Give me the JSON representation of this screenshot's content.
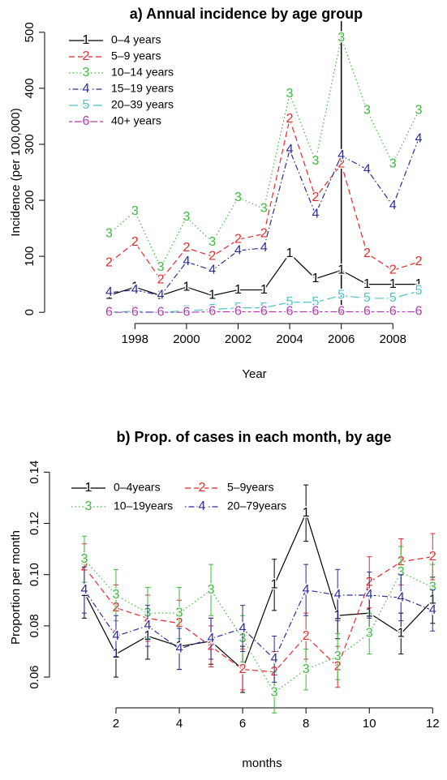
{
  "chart_data": [
    {
      "type": "line",
      "title": "a) Annual incidence by age group",
      "xlabel": "Year",
      "ylabel": "Incidence (per 100,000)",
      "x": [
        1997,
        1998,
        1999,
        2000,
        2001,
        2002,
        2003,
        2004,
        2005,
        2006,
        2007,
        2008,
        2009
      ],
      "xlim": [
        1994.5,
        2009.5
      ],
      "xticks": [
        1998,
        2000,
        2002,
        2004,
        2006,
        2008
      ],
      "ylim": [
        -20,
        520
      ],
      "yticks": [
        0,
        100,
        200,
        300,
        400,
        500
      ],
      "vline": 2006,
      "legend": "top-left",
      "series": [
        {
          "name": "0–4 years",
          "marker": "1",
          "color": "#000000",
          "line_style": "solid",
          "values": [
            30,
            45,
            30,
            45,
            30,
            40,
            40,
            105,
            60,
            75,
            50,
            50,
            50
          ]
        },
        {
          "name": "5–9 years",
          "marker": "2",
          "color": "#e8282c",
          "line_style": "dashed",
          "values": [
            88,
            125,
            58,
            115,
            100,
            130,
            140,
            345,
            205,
            265,
            105,
            75,
            90
          ]
        },
        {
          "name": "10–14 years",
          "marker": "3",
          "color": "#3db83d",
          "line_style": "dotted",
          "values": [
            140,
            180,
            80,
            170,
            125,
            205,
            185,
            390,
            270,
            490,
            360,
            265,
            360
          ]
        },
        {
          "name": "15–19 years",
          "marker": "4",
          "color": "#2b2b9a",
          "line_style": "dotdash",
          "values": [
            35,
            40,
            30,
            90,
            75,
            110,
            115,
            290,
            175,
            280,
            255,
            190,
            310
          ]
        },
        {
          "name": "20–39 years",
          "marker": "5",
          "color": "#4fc4c8",
          "line_style": "longdash",
          "values": [
            0,
            2,
            0,
            3,
            5,
            8,
            8,
            18,
            18,
            30,
            25,
            25,
            38
          ]
        },
        {
          "name": "40+ years",
          "marker": "6",
          "color": "#b03cb0",
          "line_style": "twodash",
          "values": [
            0,
            0,
            0,
            0,
            1,
            1,
            1,
            1,
            1,
            1,
            1,
            1,
            1
          ]
        }
      ]
    },
    {
      "type": "line",
      "title": "b) Prop. of cases in each month, by age",
      "xlabel": "months",
      "ylabel": "Proportion per month",
      "x": [
        1,
        2,
        3,
        4,
        5,
        6,
        7,
        8,
        9,
        10,
        11,
        12
      ],
      "xlim": [
        -0.1,
        12.3
      ],
      "xticks": [
        2,
        4,
        6,
        8,
        10,
        12
      ],
      "ylim": [
        0.048,
        0.142
      ],
      "yticks": [
        0.06,
        0.08,
        {
          "value": 0.1,
          "label": "0.10"
        },
        0.12,
        0.14
      ],
      "legend": "top-left",
      "series": [
        {
          "name": "0–4years",
          "marker": "1",
          "color": "#000000",
          "line_style": "solid",
          "values": [
            0.093,
            0.069,
            0.076,
            0.072,
            0.074,
            0.063,
            0.096,
            0.124,
            0.084,
            0.085,
            0.077,
            0.09
          ],
          "errors": [
            0.01,
            0.009,
            0.009,
            0.009,
            0.009,
            0.009,
            0.01,
            0.011,
            0.009,
            0.009,
            0.008,
            0.009
          ]
        },
        {
          "name": "5–9years",
          "marker": "2",
          "color": "#e8282c",
          "line_style": "dashed",
          "values": [
            0.103,
            0.087,
            0.083,
            0.081,
            0.072,
            0.063,
            0.062,
            0.076,
            0.064,
            0.097,
            0.105,
            0.107
          ],
          "errors": [
            0.009,
            0.009,
            0.009,
            0.009,
            0.008,
            0.008,
            0.008,
            0.009,
            0.008,
            0.01,
            0.009,
            0.009
          ]
        },
        {
          "name": "10–19years",
          "marker": "3",
          "color": "#3db83d",
          "line_style": "dotted",
          "values": [
            0.106,
            0.092,
            0.085,
            0.085,
            0.094,
            0.075,
            0.054,
            0.063,
            0.068,
            0.077,
            0.101,
            0.095
          ],
          "errors": [
            0.009,
            0.01,
            0.01,
            0.01,
            0.01,
            0.009,
            0.008,
            0.008,
            0.009,
            0.008,
            0.01,
            0.009
          ]
        },
        {
          "name": "20–79years",
          "marker": "4",
          "color": "#2b2b9a",
          "line_style": "dotdash",
          "values": [
            0.094,
            0.076,
            0.08,
            0.071,
            0.075,
            0.079,
            0.067,
            0.094,
            0.092,
            0.092,
            0.091,
            0.086
          ],
          "errors": [
            0.009,
            0.008,
            0.008,
            0.008,
            0.008,
            0.009,
            0.009,
            0.01,
            0.01,
            0.009,
            0.009,
            0.008
          ]
        }
      ]
    }
  ]
}
